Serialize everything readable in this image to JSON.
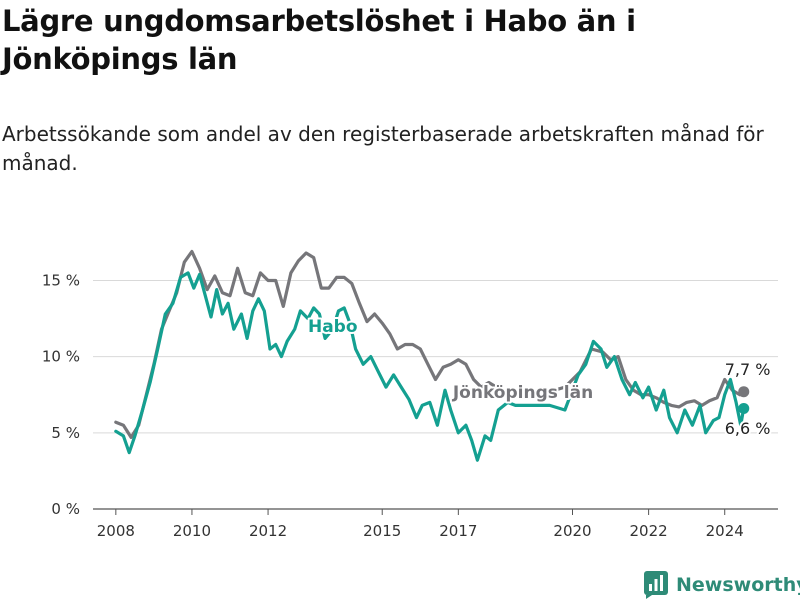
{
  "title": "Lägre ungdomsarbetslöshet i Habo än i Jönköpings län",
  "subtitle": "Arbetssökande som andel av den registerbaserade arbetskraften månad för månad.",
  "brand": "Newsworthy",
  "chart_data": {
    "type": "line",
    "y_unit": "%",
    "ylim": [
      0,
      17
    ],
    "yticks": [
      {
        "value": 0,
        "label": "0 %"
      },
      {
        "value": 5,
        "label": "5 %"
      },
      {
        "value": 10,
        "label": "10 %"
      },
      {
        "value": 15,
        "label": "15 %"
      }
    ],
    "xlim": [
      2007.4,
      2025.4
    ],
    "xticks": [
      {
        "value": 2008,
        "label": "2008"
      },
      {
        "value": 2010,
        "label": "2010"
      },
      {
        "value": 2012,
        "label": "2012"
      },
      {
        "value": 2015,
        "label": "2015"
      },
      {
        "value": 2017,
        "label": "2017"
      },
      {
        "value": 2020,
        "label": "2020"
      },
      {
        "value": 2022,
        "label": "2022"
      },
      {
        "value": 2024,
        "label": "2024"
      }
    ],
    "grid": true,
    "series": [
      {
        "name": "Jönköpings län",
        "color": "#76767a",
        "label": "Jönköpings län",
        "end_label": "7,7 %",
        "points": [
          [
            2008.0,
            5.7
          ],
          [
            2008.2,
            5.5
          ],
          [
            2008.4,
            4.7
          ],
          [
            2008.6,
            5.5
          ],
          [
            2008.8,
            7.5
          ],
          [
            2009.0,
            9.5
          ],
          [
            2009.2,
            11.8
          ],
          [
            2009.4,
            13.0
          ],
          [
            2009.6,
            14.2
          ],
          [
            2009.8,
            16.2
          ],
          [
            2010.0,
            16.9
          ],
          [
            2010.2,
            15.8
          ],
          [
            2010.4,
            14.4
          ],
          [
            2010.6,
            15.3
          ],
          [
            2010.8,
            14.2
          ],
          [
            2011.0,
            14.0
          ],
          [
            2011.2,
            15.8
          ],
          [
            2011.4,
            14.2
          ],
          [
            2011.6,
            14.0
          ],
          [
            2011.8,
            15.5
          ],
          [
            2012.0,
            15.0
          ],
          [
            2012.2,
            15.0
          ],
          [
            2012.4,
            13.3
          ],
          [
            2012.6,
            15.5
          ],
          [
            2012.8,
            16.3
          ],
          [
            2013.0,
            16.8
          ],
          [
            2013.2,
            16.5
          ],
          [
            2013.4,
            14.5
          ],
          [
            2013.6,
            14.5
          ],
          [
            2013.8,
            15.2
          ],
          [
            2014.0,
            15.2
          ],
          [
            2014.2,
            14.8
          ],
          [
            2014.4,
            13.5
          ],
          [
            2014.6,
            12.3
          ],
          [
            2014.8,
            12.8
          ],
          [
            2015.0,
            12.2
          ],
          [
            2015.2,
            11.5
          ],
          [
            2015.4,
            10.5
          ],
          [
            2015.6,
            10.8
          ],
          [
            2015.8,
            10.8
          ],
          [
            2016.0,
            10.5
          ],
          [
            2016.2,
            9.5
          ],
          [
            2016.4,
            8.5
          ],
          [
            2016.6,
            9.3
          ],
          [
            2016.8,
            9.5
          ],
          [
            2017.0,
            9.8
          ],
          [
            2017.2,
            9.5
          ],
          [
            2017.4,
            8.5
          ],
          [
            2017.6,
            8.0
          ],
          [
            2017.8,
            8.3
          ],
          [
            2018.2,
            7.7
          ],
          [
            2018.8,
            7.3
          ],
          [
            2019.4,
            7.7
          ],
          [
            2019.8,
            8.0
          ],
          [
            2020.2,
            9.0
          ],
          [
            2020.5,
            10.5
          ],
          [
            2020.8,
            10.3
          ],
          [
            2021.0,
            9.8
          ],
          [
            2021.2,
            10.0
          ],
          [
            2021.4,
            8.5
          ],
          [
            2021.6,
            7.8
          ],
          [
            2021.8,
            7.5
          ],
          [
            2022.0,
            7.5
          ],
          [
            2022.2,
            7.3
          ],
          [
            2022.4,
            7.0
          ],
          [
            2022.6,
            6.8
          ],
          [
            2022.8,
            6.7
          ],
          [
            2023.0,
            7.0
          ],
          [
            2023.2,
            7.1
          ],
          [
            2023.4,
            6.8
          ],
          [
            2023.6,
            7.1
          ],
          [
            2023.8,
            7.3
          ],
          [
            2024.0,
            8.5
          ],
          [
            2024.2,
            7.8
          ],
          [
            2024.4,
            7.5
          ],
          [
            2024.5,
            7.7
          ]
        ]
      },
      {
        "name": "Habo",
        "color": "#14a091",
        "label": "Habo",
        "end_label": "6,6 %",
        "points": [
          [
            2008.0,
            5.1
          ],
          [
            2008.2,
            4.8
          ],
          [
            2008.35,
            3.7
          ],
          [
            2008.5,
            4.8
          ],
          [
            2008.7,
            6.5
          ],
          [
            2008.9,
            8.3
          ],
          [
            2009.1,
            10.5
          ],
          [
            2009.3,
            12.8
          ],
          [
            2009.5,
            13.5
          ],
          [
            2009.7,
            15.2
          ],
          [
            2009.9,
            15.5
          ],
          [
            2010.05,
            14.5
          ],
          [
            2010.2,
            15.4
          ],
          [
            2010.35,
            14.0
          ],
          [
            2010.5,
            12.6
          ],
          [
            2010.65,
            14.4
          ],
          [
            2010.8,
            12.8
          ],
          [
            2010.95,
            13.5
          ],
          [
            2011.1,
            11.8
          ],
          [
            2011.3,
            12.8
          ],
          [
            2011.45,
            11.2
          ],
          [
            2011.6,
            13.0
          ],
          [
            2011.75,
            13.8
          ],
          [
            2011.9,
            13.0
          ],
          [
            2012.05,
            10.5
          ],
          [
            2012.2,
            10.8
          ],
          [
            2012.35,
            10.0
          ],
          [
            2012.5,
            11.0
          ],
          [
            2012.7,
            11.8
          ],
          [
            2012.85,
            13.0
          ],
          [
            2013.05,
            12.5
          ],
          [
            2013.2,
            13.2
          ],
          [
            2013.35,
            12.8
          ],
          [
            2013.5,
            11.2
          ],
          [
            2013.7,
            11.8
          ],
          [
            2013.85,
            13.0
          ],
          [
            2014.0,
            13.2
          ],
          [
            2014.15,
            12.2
          ],
          [
            2014.3,
            10.5
          ],
          [
            2014.5,
            9.5
          ],
          [
            2014.7,
            10.0
          ],
          [
            2014.9,
            9.0
          ],
          [
            2015.1,
            8.0
          ],
          [
            2015.3,
            8.8
          ],
          [
            2015.5,
            8.0
          ],
          [
            2015.7,
            7.2
          ],
          [
            2015.9,
            6.0
          ],
          [
            2016.05,
            6.8
          ],
          [
            2016.25,
            7.0
          ],
          [
            2016.45,
            5.5
          ],
          [
            2016.65,
            7.8
          ],
          [
            2016.8,
            6.5
          ],
          [
            2017.0,
            5.0
          ],
          [
            2017.2,
            5.5
          ],
          [
            2017.35,
            4.5
          ],
          [
            2017.5,
            3.2
          ],
          [
            2017.7,
            4.8
          ],
          [
            2017.85,
            4.5
          ],
          [
            2018.05,
            6.5
          ],
          [
            2018.3,
            7.0
          ],
          [
            2018.5,
            6.8
          ],
          [
            2019.4,
            6.8
          ],
          [
            2019.8,
            6.5
          ],
          [
            2020.15,
            8.8
          ],
          [
            2020.35,
            9.5
          ],
          [
            2020.55,
            11.0
          ],
          [
            2020.75,
            10.5
          ],
          [
            2020.9,
            9.3
          ],
          [
            2021.1,
            10.0
          ],
          [
            2021.3,
            8.5
          ],
          [
            2021.5,
            7.5
          ],
          [
            2021.65,
            8.3
          ],
          [
            2021.85,
            7.3
          ],
          [
            2022.0,
            8.0
          ],
          [
            2022.2,
            6.5
          ],
          [
            2022.4,
            7.8
          ],
          [
            2022.55,
            6.0
          ],
          [
            2022.75,
            5.0
          ],
          [
            2022.95,
            6.5
          ],
          [
            2023.15,
            5.5
          ],
          [
            2023.35,
            6.8
          ],
          [
            2023.5,
            5.0
          ],
          [
            2023.7,
            5.8
          ],
          [
            2023.85,
            6.0
          ],
          [
            2024.0,
            7.5
          ],
          [
            2024.15,
            8.5
          ],
          [
            2024.3,
            7.0
          ],
          [
            2024.42,
            5.5
          ],
          [
            2024.5,
            6.6
          ]
        ]
      }
    ]
  }
}
